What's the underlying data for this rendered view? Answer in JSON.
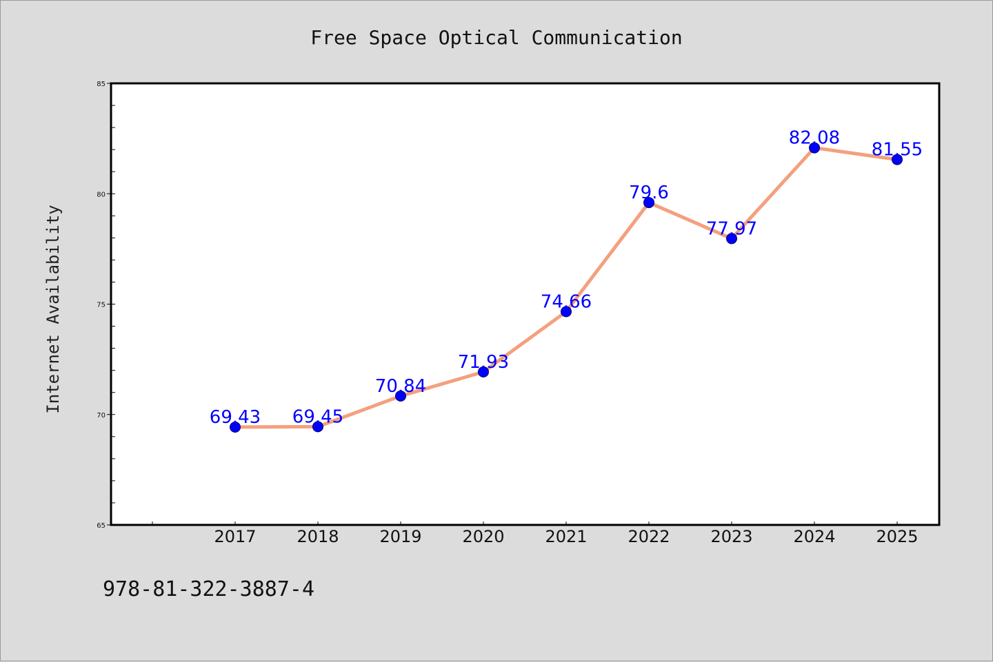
{
  "chart_data": {
    "type": "line",
    "title": "Free Space Optical Communication",
    "xlabel": "",
    "ylabel": "Internet Availability",
    "categories": [
      "2017",
      "2018",
      "2019",
      "2020",
      "2021",
      "2022",
      "2023",
      "2024",
      "2025"
    ],
    "series": [
      {
        "values": [
          69.43,
          69.45,
          70.84,
          71.93,
          74.66,
          79.6,
          77.97,
          82.08,
          81.55
        ],
        "labels": [
          "69.43",
          "69.45",
          "70.84",
          "71.93",
          "74.66",
          "79.6",
          "77.97",
          "82.08",
          "81.55"
        ],
        "line_color": "#f4a07e",
        "marker_color": "#0000ff",
        "label_color": "#0000ff"
      }
    ],
    "ylim": [
      65,
      85
    ],
    "yticks": [
      "65",
      "70",
      "75",
      "80",
      "85"
    ],
    "grid": false,
    "legend": "none"
  },
  "footer": {
    "text": "978-81-322-3887-4"
  },
  "colors": {
    "background": "#dcdcdc",
    "plot_background": "#ffffff",
    "axes": "#000000"
  }
}
